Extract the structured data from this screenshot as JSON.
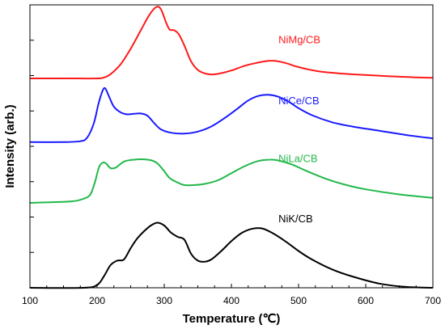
{
  "chart_data": {
    "type": "line",
    "xlabel": "Temperature (℃)",
    "ylabel": "Intensity (arb.)",
    "xlim": [
      100,
      700
    ],
    "ylim": [
      0,
      100
    ],
    "x_ticks": [
      100,
      200,
      300,
      400,
      500,
      600,
      700
    ],
    "y_ticks_labeled": false,
    "grid": false,
    "legend": "none",
    "series": [
      {
        "name": "NiMg/CB",
        "color": "#ff1a1a",
        "points": [
          [
            100,
            74
          ],
          [
            150,
            74
          ],
          [
            200,
            74
          ],
          [
            210,
            74.3
          ],
          [
            220,
            75.5
          ],
          [
            235,
            79
          ],
          [
            250,
            84.5
          ],
          [
            265,
            91
          ],
          [
            278,
            96.5
          ],
          [
            288,
            99.2
          ],
          [
            295,
            98.5
          ],
          [
            303,
            93.6
          ],
          [
            308,
            91.3
          ],
          [
            315,
            91
          ],
          [
            322,
            89.5
          ],
          [
            330,
            85.6
          ],
          [
            340,
            80
          ],
          [
            350,
            77
          ],
          [
            360,
            75.8
          ],
          [
            370,
            75.4
          ],
          [
            380,
            75.6
          ],
          [
            400,
            76.8
          ],
          [
            420,
            78.5
          ],
          [
            440,
            79.6
          ],
          [
            455,
            80.2
          ],
          [
            465,
            80.2
          ],
          [
            480,
            79.5
          ],
          [
            500,
            78
          ],
          [
            530,
            76.5
          ],
          [
            560,
            75.8
          ],
          [
            600,
            75.2
          ],
          [
            650,
            74.6
          ],
          [
            700,
            74.2
          ]
        ]
      },
      {
        "name": "NiCe/CB",
        "color": "#1a1aff",
        "points": [
          [
            100,
            51.5
          ],
          [
            150,
            51.5
          ],
          [
            175,
            51.8
          ],
          [
            185,
            53
          ],
          [
            195,
            58
          ],
          [
            202,
            65
          ],
          [
            208,
            69.5
          ],
          [
            212,
            70.5
          ],
          [
            218,
            67.5
          ],
          [
            225,
            64
          ],
          [
            235,
            62
          ],
          [
            245,
            61.3
          ],
          [
            255,
            61.5
          ],
          [
            265,
            61.6
          ],
          [
            275,
            60.8
          ],
          [
            285,
            58.2
          ],
          [
            295,
            56
          ],
          [
            310,
            54.8
          ],
          [
            330,
            54.5
          ],
          [
            350,
            55.2
          ],
          [
            370,
            57
          ],
          [
            390,
            60
          ],
          [
            410,
            63.5
          ],
          [
            425,
            66.2
          ],
          [
            440,
            67.8
          ],
          [
            455,
            68.2
          ],
          [
            470,
            67.5
          ],
          [
            485,
            65.8
          ],
          [
            500,
            63.5
          ],
          [
            520,
            61
          ],
          [
            550,
            58.5
          ],
          [
            580,
            57
          ],
          [
            620,
            55.5
          ],
          [
            660,
            54
          ],
          [
            700,
            52.8
          ]
        ]
      },
      {
        "name": "NiLa/CB",
        "color": "#22b84a",
        "points": [
          [
            100,
            30
          ],
          [
            160,
            30.5
          ],
          [
            180,
            31.5
          ],
          [
            190,
            33
          ],
          [
            197,
            37.5
          ],
          [
            203,
            42.7
          ],
          [
            209,
            44.3
          ],
          [
            214,
            43.8
          ],
          [
            220,
            42.3
          ],
          [
            228,
            42.5
          ],
          [
            240,
            44.6
          ],
          [
            255,
            45.3
          ],
          [
            275,
            45.3
          ],
          [
            288,
            44.3
          ],
          [
            298,
            41.8
          ],
          [
            308,
            38.8
          ],
          [
            320,
            37.2
          ],
          [
            330,
            36.3
          ],
          [
            345,
            36.3
          ],
          [
            360,
            36.7
          ],
          [
            380,
            38
          ],
          [
            400,
            40.5
          ],
          [
            420,
            43
          ],
          [
            440,
            44.8
          ],
          [
            458,
            45.3
          ],
          [
            470,
            45
          ],
          [
            490,
            43.6
          ],
          [
            510,
            41.5
          ],
          [
            540,
            38.6
          ],
          [
            570,
            36.4
          ],
          [
            600,
            34.8
          ],
          [
            650,
            33
          ],
          [
            700,
            31.8
          ]
        ]
      },
      {
        "name": "NiK/CB",
        "color": "#000000",
        "points": [
          [
            100,
            0
          ],
          [
            180,
            0
          ],
          [
            200,
            1
          ],
          [
            210,
            4
          ],
          [
            220,
            8
          ],
          [
            230,
            9.6
          ],
          [
            240,
            10
          ],
          [
            250,
            14
          ],
          [
            260,
            17.5
          ],
          [
            270,
            20
          ],
          [
            280,
            22
          ],
          [
            290,
            23
          ],
          [
            300,
            22
          ],
          [
            310,
            19.5
          ],
          [
            320,
            18
          ],
          [
            330,
            17
          ],
          [
            340,
            12
          ],
          [
            350,
            9.6
          ],
          [
            360,
            9.2
          ],
          [
            370,
            10
          ],
          [
            385,
            13
          ],
          [
            400,
            16.5
          ],
          [
            415,
            19.3
          ],
          [
            430,
            20.8
          ],
          [
            445,
            21
          ],
          [
            460,
            19.5
          ],
          [
            480,
            16.5
          ],
          [
            500,
            13
          ],
          [
            520,
            10
          ],
          [
            550,
            6.5
          ],
          [
            580,
            4
          ],
          [
            620,
            1.5
          ],
          [
            660,
            0.3
          ],
          [
            700,
            0
          ]
        ]
      }
    ],
    "series_labels": [
      {
        "text": "NiMg/CB",
        "x": 470,
        "y": 86.5
      },
      {
        "text": "NiCe/CB",
        "x": 470,
        "y": 64.8
      },
      {
        "text": "NiLa/CB",
        "x": 470,
        "y": 44.4
      },
      {
        "text": "NiK/CB",
        "x": 470,
        "y": 23.2
      }
    ]
  }
}
